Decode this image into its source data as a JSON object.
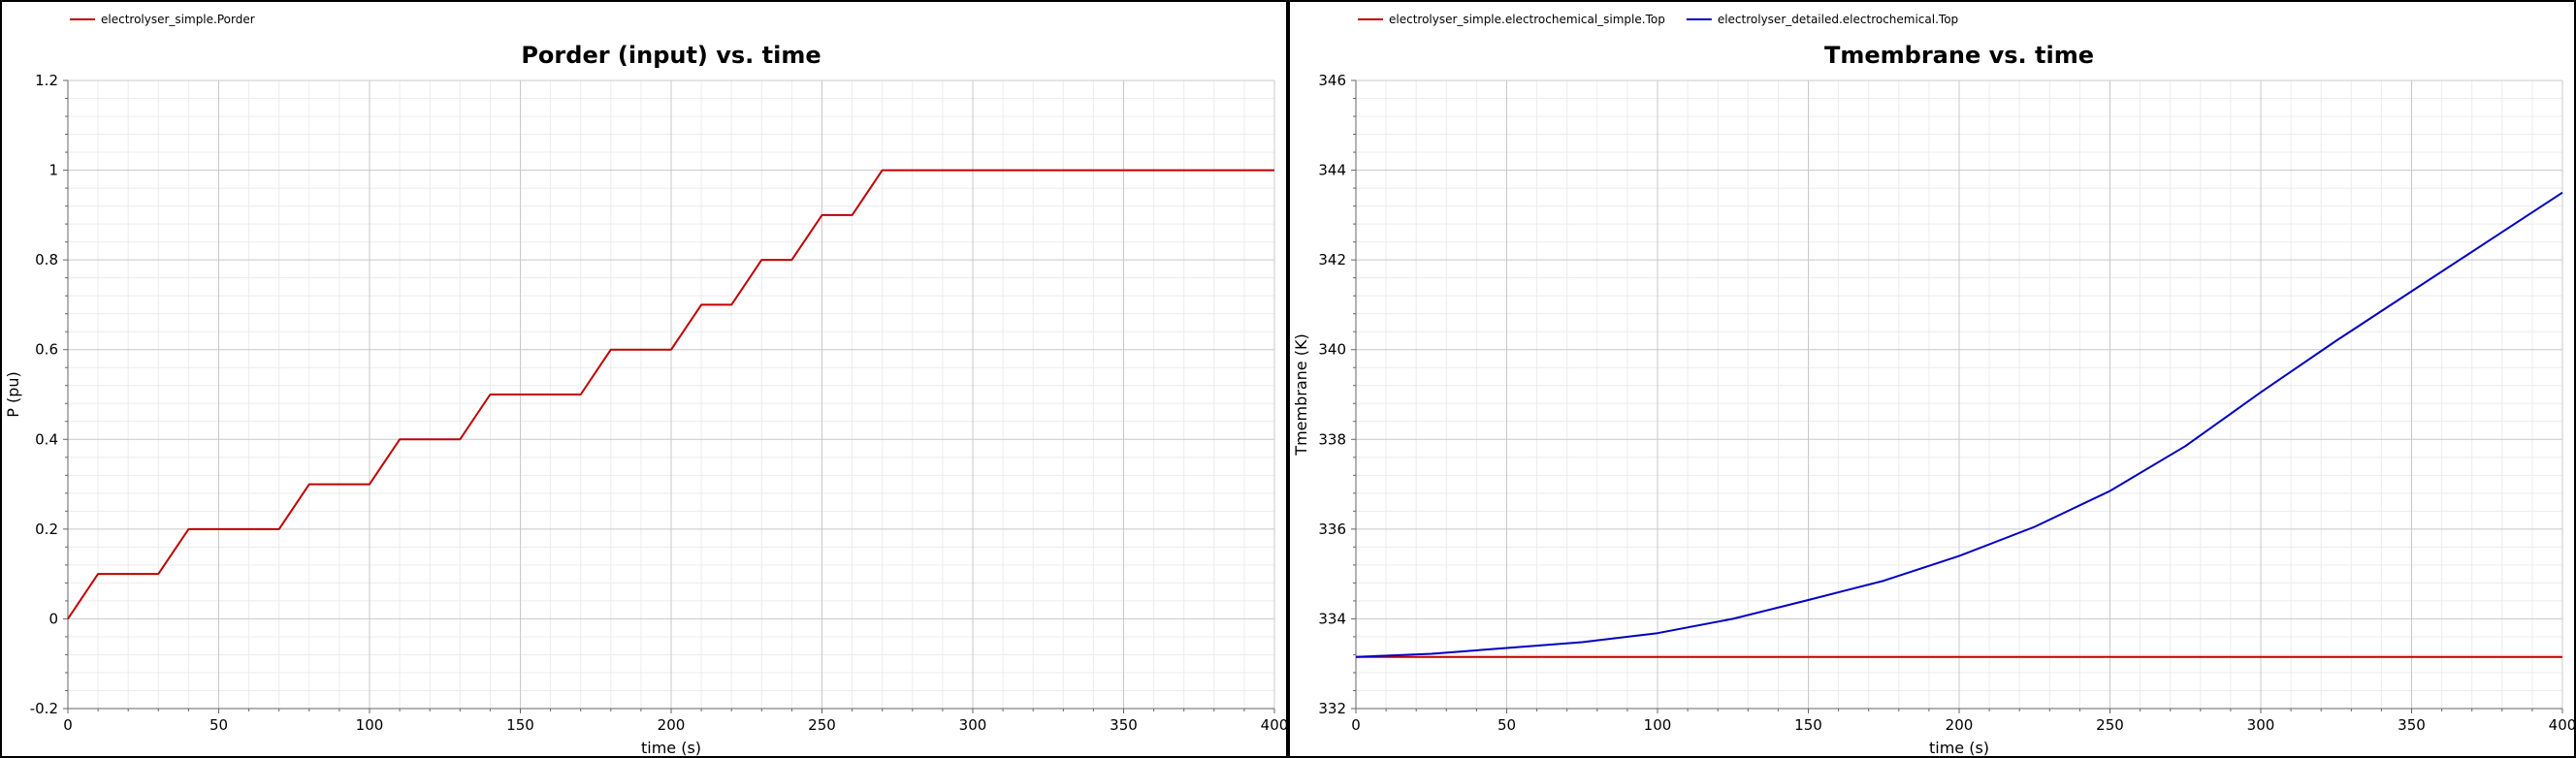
{
  "chart_data": [
    {
      "type": "line",
      "title": "Porder (input) vs. time",
      "xlabel": "time (s)",
      "ylabel": "P (pu)",
      "xlim": [
        0,
        400
      ],
      "ylim": [
        -0.2,
        1.2
      ],
      "xticks": [
        0,
        50,
        100,
        150,
        200,
        250,
        300,
        350,
        400
      ],
      "yticks": [
        -0.2,
        0,
        0.2,
        0.4,
        0.6,
        0.8,
        1,
        1.2
      ],
      "ytick_labels": [
        "-0.2",
        "0",
        "0.2",
        "0.4",
        "0.6",
        "0.8",
        "1",
        "1.2"
      ],
      "grid": true,
      "legend_position": "top-left",
      "series": [
        {
          "name": "electrolyser_simple.Porder",
          "color": "#c00000",
          "x": [
            0,
            10,
            30,
            40,
            70,
            80,
            100,
            110,
            130,
            140,
            170,
            180,
            200,
            210,
            220,
            230,
            240,
            250,
            260,
            270,
            400
          ],
          "y": [
            0,
            0.1,
            0.1,
            0.2,
            0.2,
            0.3,
            0.3,
            0.4,
            0.4,
            0.5,
            0.5,
            0.6,
            0.6,
            0.7,
            0.7,
            0.8,
            0.8,
            0.9,
            0.9,
            1.0,
            1.0
          ]
        }
      ]
    },
    {
      "type": "line",
      "title": "Tmembrane vs. time",
      "xlabel": "time (s)",
      "ylabel": "Tmembrane (K)",
      "xlim": [
        0,
        400
      ],
      "ylim": [
        332,
        346
      ],
      "xticks": [
        0,
        50,
        100,
        150,
        200,
        250,
        300,
        350,
        400
      ],
      "yticks": [
        332,
        334,
        336,
        338,
        340,
        342,
        344,
        346
      ],
      "ytick_labels": [
        "332",
        "334",
        "336",
        "338",
        "340",
        "342",
        "344",
        "346"
      ],
      "grid": true,
      "legend_position": "top-left",
      "series": [
        {
          "name": "electrolyser_simple.electrochemical_simple.Top",
          "color": "#c00000",
          "x": [
            0,
            400
          ],
          "y": [
            333.15,
            333.15
          ]
        },
        {
          "name": "electrolyser_detailed.electrochemical.Top",
          "color": "#0000c0",
          "x": [
            0,
            25,
            50,
            75,
            100,
            125,
            150,
            175,
            200,
            225,
            250,
            275,
            300,
            325,
            350,
            375,
            400
          ],
          "y": [
            333.15,
            333.22,
            333.35,
            333.48,
            333.68,
            334.0,
            334.42,
            334.85,
            335.4,
            336.05,
            336.85,
            337.85,
            339.05,
            340.2,
            341.3,
            342.4,
            343.5
          ]
        }
      ]
    }
  ]
}
